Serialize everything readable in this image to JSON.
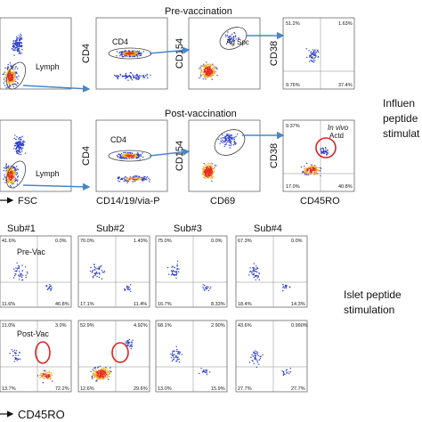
{
  "colors": {
    "arrow": "#4a86c8",
    "events_cold": "#2a3cc8",
    "events_hot": "#e83020",
    "gate_highlight": "#dd2222",
    "gate": "#444444"
  },
  "top_section": {
    "row1_title": "Pre-vaccination",
    "row2_title": "Post-vaccination",
    "side_label_lines": [
      "Influen",
      "peptide",
      "stimulat"
    ],
    "x_axis_labels": [
      "FSC",
      "CD14/19/via-P",
      "CD69",
      "CD45RO"
    ],
    "row1": {
      "gate_lymph": "Lymph",
      "gate_cd4": "CD4",
      "gate_ag_spc": "Ag Spc",
      "y_labels": [
        "CD4",
        "CD154",
        "CD38"
      ],
      "quadrants": {
        "ul": "51.2%",
        "ur": "1.63%",
        "ll": "9.76%",
        "lr": "37.4%"
      }
    },
    "row2": {
      "gate_lymph": "Lymph",
      "gate_cd4": "CD4",
      "annot_lines": [
        "In vivo",
        "Actd"
      ],
      "y_labels": [
        "CD4",
        "CD154",
        "CD38"
      ],
      "quadrants": {
        "ul": "9.37%",
        "ur": "",
        "ll": "17.0%",
        "lr": "40.8%"
      }
    }
  },
  "bottom_section": {
    "subjects": [
      "Sub#1",
      "Sub#2",
      "Sub#3",
      "Sub#4"
    ],
    "row_labels": [
      "Pre-Vac",
      "Post-Vac"
    ],
    "side_label_lines": [
      "Islet peptide",
      "stimulation"
    ],
    "x_axis_label": "CD45RO",
    "pre_vac": [
      {
        "ul": "41.6%",
        "ur": "0.0%",
        "ll": "11.6%",
        "lr": "46.8%"
      },
      {
        "ul": "70.0%",
        "ur": "1.43%",
        "ll": "17.1%",
        "lr": "11.4%"
      },
      {
        "ul": "75.0%",
        "ur": "0.0%",
        "ll": "16.7%",
        "lr": "8.33%"
      },
      {
        "ul": "67.3%",
        "ur": "0.0%",
        "ll": "18.4%",
        "lr": "14.3%"
      }
    ],
    "post_vac": [
      {
        "ul": "11.0%",
        "ur": "3.0%",
        "ll": "13.7%",
        "lr": "72.2%"
      },
      {
        "ul": "52.9%",
        "ur": "4.92%",
        "ll": "12.6%",
        "lr": "29.6%"
      },
      {
        "ul": "68.1%",
        "ur": "2.90%",
        "ll": "13.0%",
        "lr": "15.9%"
      },
      {
        "ul": "43.6%",
        "ur": "0.990%",
        "ll": "27.7%",
        "lr": "27.7%"
      }
    ]
  }
}
